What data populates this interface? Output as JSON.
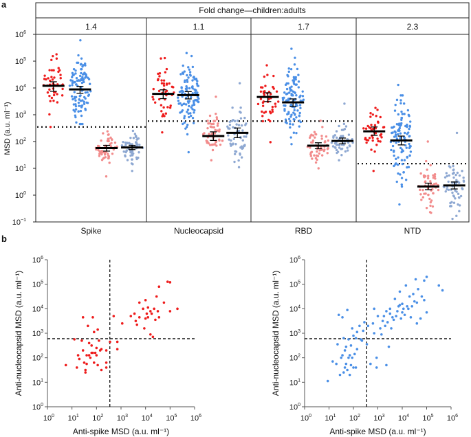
{
  "colors": {
    "children": "#ee1c1c",
    "adults": "#4a8fe6",
    "children_pre": "#f28c8c",
    "adults_pre": "#8ea8d2",
    "median": "#000000"
  },
  "chart_data": [
    {
      "panel_label": "a",
      "type": "strip",
      "header": "Fold change—children:adults",
      "ylabel": "MSD (a.u. ml⁻¹)",
      "yscale": "log",
      "ylim_log10": [
        -1,
        6
      ],
      "yticks": [
        "10",
        "10",
        "10",
        "10",
        "10",
        "10",
        "10",
        "10"
      ],
      "ytick_exps": [
        "6",
        "5",
        "4",
        "3",
        "2",
        "1",
        "0",
        "−1"
      ],
      "ytick_values_log10": [
        6,
        5,
        4,
        3,
        2,
        1,
        0,
        -1
      ],
      "panels": [
        {
          "name": "Spike",
          "fold_change": "1.4",
          "threshold": 350,
          "groups": [
            {
              "color": "children",
              "median": 12000,
              "ci": [
                7500,
                17000
              ],
              "min": 350,
              "max": 180000,
              "n": 45
            },
            {
              "color": "adults",
              "median": 8800,
              "ci": [
                6300,
                11500
              ],
              "min": 450,
              "max": 600000,
              "n": 110
            },
            {
              "color": "children_pre",
              "median": 57,
              "ci": [
                44,
                72
              ],
              "min": 5,
              "max": 240,
              "n": 55
            },
            {
              "color": "adults_pre",
              "median": 60,
              "ci": [
                50,
                72
              ],
              "min": 8,
              "max": 250,
              "n": 60
            }
          ]
        },
        {
          "name": "Nucleocapsid",
          "fold_change": "1.1",
          "threshold": 580,
          "groups": [
            {
              "color": "children",
              "median": 6000,
              "ci": [
                4000,
                8500
              ],
              "min": 220,
              "max": 130000,
              "n": 45
            },
            {
              "color": "adults",
              "median": 5400,
              "ci": [
                3900,
                7300
              ],
              "min": 40,
              "max": 200000,
              "n": 110
            },
            {
              "color": "children_pre",
              "median": 160,
              "ci": [
                110,
                230
              ],
              "min": 20,
              "max": 4700,
              "n": 55
            },
            {
              "color": "adults_pre",
              "median": 210,
              "ci": [
                140,
                320
              ],
              "min": 11,
              "max": 15000,
              "n": 60
            }
          ]
        },
        {
          "name": "RBD",
          "fold_change": "1.7",
          "threshold": 580,
          "groups": [
            {
              "color": "children",
              "median": 4600,
              "ci": [
                3100,
                6600
              ],
              "min": 95,
              "max": 70000,
              "n": 45
            },
            {
              "color": "adults",
              "median": 2900,
              "ci": [
                2000,
                3900
              ],
              "min": 80,
              "max": 290000,
              "n": 110
            },
            {
              "color": "children_pre",
              "median": 70,
              "ci": [
                54,
                90
              ],
              "min": 10,
              "max": 600,
              "n": 55
            },
            {
              "color": "adults_pre",
              "median": 105,
              "ci": [
                82,
                135
              ],
              "min": 20,
              "max": 2600,
              "n": 60
            }
          ]
        },
        {
          "name": "NTD",
          "fold_change": "2.3",
          "threshold": 15,
          "groups": [
            {
              "color": "children",
              "median": 240,
              "ci": [
                170,
                350
              ],
              "min": 8,
              "max": 1800,
              "n": 45
            },
            {
              "color": "adults",
              "median": 110,
              "ci": [
                75,
                160
              ],
              "min": 0.45,
              "max": 13000,
              "n": 110
            },
            {
              "color": "children_pre",
              "median": 2.1,
              "ci": [
                1.6,
                2.8
              ],
              "min": 0.22,
              "max": 100,
              "n": 55
            },
            {
              "color": "adults_pre",
              "median": 2.3,
              "ci": [
                1.7,
                3.1
              ],
              "min": 0.13,
              "max": 210,
              "n": 60
            }
          ]
        }
      ]
    },
    {
      "panel_label": "b",
      "type": "scatter",
      "xlabel": "Anti-spike MSD (a.u. ml⁻¹)",
      "ylabel": "Anti-nucleocapsid MSD (a.u. ml⁻¹)",
      "xscale": "log",
      "yscale": "log",
      "xlim_log10": [
        0,
        6
      ],
      "ylim_log10": [
        0,
        6
      ],
      "threshold_x": 350,
      "threshold_y": 600,
      "plots": [
        {
          "color": "children",
          "points_log10": [
            [
              0.75,
              1.7
            ],
            [
              1.1,
              2.75
            ],
            [
              1.2,
              1.6
            ],
            [
              1.25,
              2.1
            ],
            [
              1.3,
              1.95
            ],
            [
              1.4,
              2.7
            ],
            [
              1.45,
              2.3
            ],
            [
              1.45,
              3.65
            ],
            [
              1.5,
              1.8
            ],
            [
              1.55,
              1.4
            ],
            [
              1.55,
              1.5
            ],
            [
              1.6,
              2.1
            ],
            [
              1.65,
              3.3
            ],
            [
              1.7,
              2.6
            ],
            [
              1.7,
              2.1
            ],
            [
              1.8,
              2.5
            ],
            [
              1.8,
              2.2
            ],
            [
              1.85,
              3.65
            ],
            [
              1.85,
              2.2
            ],
            [
              1.9,
              1.8
            ],
            [
              1.9,
              3.05
            ],
            [
              1.95,
              2.2
            ],
            [
              2.0,
              2.4
            ],
            [
              2.0,
              2.1
            ],
            [
              2.05,
              1.7
            ],
            [
              2.05,
              3.15
            ],
            [
              2.1,
              2.7
            ],
            [
              2.15,
              2.3
            ],
            [
              2.2,
              1.5
            ],
            [
              2.2,
              2.35
            ],
            [
              1.75,
              2.0
            ],
            [
              1.6,
              1.75
            ],
            [
              2.4,
              1.8
            ],
            [
              2.4,
              1.6
            ],
            [
              2.4,
              2.3
            ],
            [
              2.55,
              2.65
            ],
            [
              2.7,
              3.7
            ],
            [
              2.85,
              2.35
            ],
            [
              2.85,
              2.65
            ],
            [
              3.05,
              3.4
            ],
            [
              3.4,
              3.7
            ],
            [
              3.55,
              3.8
            ],
            [
              3.6,
              3.5
            ],
            [
              3.65,
              3.35
            ],
            [
              3.75,
              4.25
            ],
            [
              3.75,
              3.65
            ],
            [
              3.9,
              4.0
            ],
            [
              3.95,
              3.2
            ],
            [
              4.0,
              4.35
            ],
            [
              4.0,
              3.6
            ],
            [
              4.05,
              3.8
            ],
            [
              4.1,
              3.65
            ],
            [
              4.1,
              4.05
            ],
            [
              4.2,
              3.9
            ],
            [
              4.2,
              2.95
            ],
            [
              4.25,
              3.8
            ],
            [
              4.3,
              2.85
            ],
            [
              4.35,
              4.0
            ],
            [
              4.4,
              3.55
            ],
            [
              4.45,
              4.5
            ],
            [
              4.5,
              3.9
            ],
            [
              4.55,
              4.9
            ],
            [
              4.55,
              3.65
            ],
            [
              4.75,
              4.25
            ],
            [
              4.9,
              5.1
            ],
            [
              5.0,
              5.08
            ],
            [
              5.0,
              3.9
            ],
            [
              5.3,
              4.0
            ]
          ]
        },
        {
          "color": "adults",
          "points_log10": [
            [
              0.95,
              1.05
            ],
            [
              1.15,
              1.85
            ],
            [
              1.3,
              1.75
            ],
            [
              1.35,
              2.55
            ],
            [
              1.4,
              3.75
            ],
            [
              1.45,
              1.3
            ],
            [
              1.5,
              2.0
            ],
            [
              1.55,
              2.1
            ],
            [
              1.55,
              3.65
            ],
            [
              1.6,
              1.4
            ],
            [
              1.6,
              2.8
            ],
            [
              1.65,
              1.6
            ],
            [
              1.65,
              2.3
            ],
            [
              1.7,
              1.75
            ],
            [
              1.7,
              2.45
            ],
            [
              1.75,
              3.95
            ],
            [
              1.75,
              1.5
            ],
            [
              1.8,
              2.0
            ],
            [
              1.8,
              2.75
            ],
            [
              1.85,
              1.3
            ],
            [
              1.85,
              2.1
            ],
            [
              1.9,
              1.7
            ],
            [
              1.9,
              2.5
            ],
            [
              1.95,
              3.2
            ],
            [
              1.95,
              2.0
            ],
            [
              2.0,
              1.6
            ],
            [
              2.0,
              2.9
            ],
            [
              2.05,
              2.15
            ],
            [
              2.1,
              1.6
            ],
            [
              2.1,
              2.8
            ],
            [
              2.15,
              3.05
            ],
            [
              2.15,
              2.35
            ],
            [
              2.25,
              3.3
            ],
            [
              2.3,
              2.75
            ],
            [
              2.35,
              2.7
            ],
            [
              2.4,
              3.1
            ],
            [
              2.45,
              3.45
            ],
            [
              2.55,
              2.55
            ],
            [
              2.6,
              3.3
            ],
            [
              2.7,
              1.75
            ],
            [
              2.8,
              3.4
            ],
            [
              2.85,
              3.0
            ],
            [
              2.85,
              4.0
            ],
            [
              2.95,
              1.6
            ],
            [
              2.95,
              2.0
            ],
            [
              3.0,
              3.7
            ],
            [
              3.1,
              3.2
            ],
            [
              3.15,
              2.95
            ],
            [
              3.2,
              3.5
            ],
            [
              3.25,
              3.7
            ],
            [
              3.3,
              3.3
            ],
            [
              3.35,
              3.9
            ],
            [
              3.35,
              1.7
            ],
            [
              3.4,
              3.45
            ],
            [
              3.45,
              2.45
            ],
            [
              3.5,
              3.8
            ],
            [
              3.5,
              4.0
            ],
            [
              3.55,
              3.2
            ],
            [
              3.6,
              3.65
            ],
            [
              3.65,
              3.55
            ],
            [
              3.7,
              4.4
            ],
            [
              3.75,
              3.7
            ],
            [
              3.8,
              3.9
            ],
            [
              3.85,
              4.1
            ],
            [
              3.9,
              4.7
            ],
            [
              3.9,
              4.15
            ],
            [
              3.95,
              3.6
            ],
            [
              4.0,
              4.2
            ],
            [
              4.0,
              3.85
            ],
            [
              4.05,
              4.0
            ],
            [
              4.1,
              3.75
            ],
            [
              4.15,
              4.95
            ],
            [
              4.2,
              4.1
            ],
            [
              4.25,
              4.0
            ],
            [
              4.3,
              4.5
            ],
            [
              4.35,
              3.65
            ],
            [
              4.4,
              4.1
            ],
            [
              4.45,
              4.6
            ],
            [
              4.5,
              4.3
            ],
            [
              4.55,
              5.2
            ],
            [
              4.6,
              3.4
            ],
            [
              4.6,
              4.25
            ],
            [
              4.65,
              4.8
            ],
            [
              4.75,
              3.6
            ],
            [
              4.8,
              4.5
            ],
            [
              4.9,
              5.15
            ],
            [
              4.9,
              4.35
            ],
            [
              5.0,
              3.85
            ],
            [
              5.0,
              5.3
            ],
            [
              5.5,
              4.95
            ],
            [
              5.65,
              4.75
            ]
          ]
        }
      ]
    }
  ]
}
